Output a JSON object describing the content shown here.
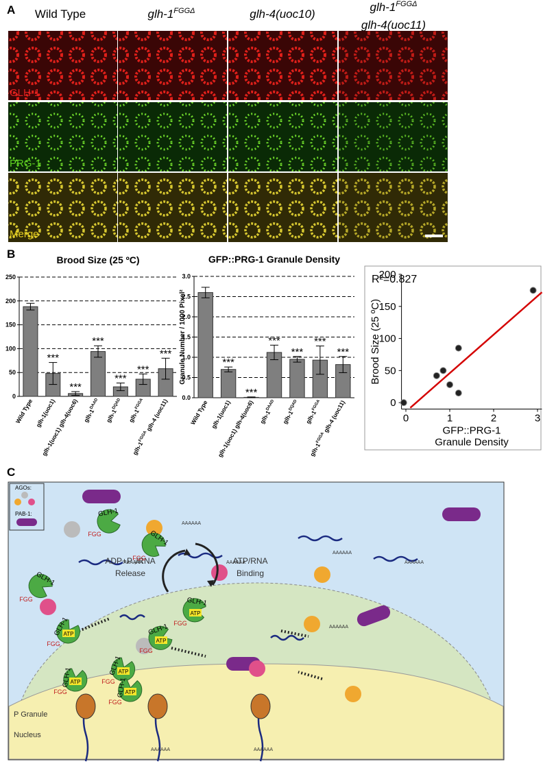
{
  "panel_labels": [
    "A",
    "B",
    "C"
  ],
  "panel_a": {
    "columns": [
      "Wild Type",
      {
        "text": "glh-1",
        "sup": "FGGΔ"
      },
      "glh-4(uoc10)",
      {
        "text": "glh-1",
        "sup": "FGGΔ",
        "line2": "glh-4(uoc11)"
      }
    ],
    "rows": [
      "GLH-1",
      "PRG-1",
      "Merge"
    ]
  },
  "chart_data": [
    {
      "type": "bar",
      "title": "Brood Size (25 ºC)",
      "categories": [
        "Wild Type",
        "glh-1(uoc1)",
        "glh-1(uoc1) glh-4(uoc6)",
        {
          "text": "glh-1",
          "sup": "DAAD"
        },
        {
          "text": "glh-1",
          "sup": "DQAD"
        },
        {
          "text": "glh-1",
          "sup": "FGGA"
        },
        {
          "text": "glh-1",
          "sup": "FGGA",
          "tail": " glh-4 (uoc11)"
        }
      ],
      "values": [
        188,
        48,
        6,
        94,
        20,
        36,
        58
      ],
      "errors": [
        7,
        23,
        4,
        12,
        8,
        11,
        22
      ],
      "significance": [
        null,
        "***",
        "***",
        "***",
        "***",
        "***",
        "***"
      ],
      "color": "#7f7f7f",
      "ylim": [
        0,
        250
      ],
      "yticks": [
        0,
        50,
        100,
        150,
        200,
        250
      ],
      "grid": "dashed"
    },
    {
      "type": "bar",
      "title": "GFP::PRG-1 Granule Density",
      "y_label": "Granule Number / 1000 Pixel²",
      "categories": [
        "Wild Type",
        "glh-1(uoc1)",
        "glh-1(uoc1) glh-4(uoc6)",
        {
          "text": "glh-1",
          "sup": "DAAD"
        },
        {
          "text": "glh-1",
          "sup": "DQAD"
        },
        {
          "text": "glh-1",
          "sup": "FGGA"
        },
        {
          "text": "glh-1",
          "sup": "FGGA",
          "tail": " glh-4 (uoc11)"
        }
      ],
      "values": [
        2.6,
        0.7,
        0.01,
        1.12,
        0.95,
        0.93,
        0.82
      ],
      "errors": [
        0.13,
        0.06,
        0.01,
        0.18,
        0.07,
        0.35,
        0.2
      ],
      "significance": [
        null,
        "***",
        "***",
        "***",
        "***",
        "***",
        "***"
      ],
      "color": "#7f7f7f",
      "ylim": [
        0,
        3
      ],
      "yticks": [
        {
          "value": 0,
          "label": "0.0"
        },
        0.5,
        {
          "value": 1,
          "label": "1.0"
        },
        1.5,
        {
          "value": 2,
          "label": "2.0"
        },
        2.5,
        {
          "value": 3,
          "label": "3.0"
        }
      ],
      "grid": "dashed"
    },
    {
      "type": "scatter",
      "y_label": "Brood Size (25 ºC)",
      "x_label": [
        "GFP::PRG-1",
        "Granule Density"
      ],
      "annotation": "R²=0.827",
      "x": [
        2.9,
        -0.05,
        0.7,
        0.85,
        1.0,
        1.2,
        1.2
      ],
      "y": [
        175,
        0,
        42,
        50,
        28,
        15,
        85
      ],
      "color": "#222222",
      "fit_line": {
        "x": [
          0.1,
          3.1
        ],
        "y": [
          -8,
          172
        ],
        "color": "#d40000"
      },
      "xlim": [
        -0.1,
        3.1
      ],
      "xticks": [
        0,
        1,
        2,
        3
      ],
      "ylim": [
        -10,
        200
      ],
      "yticks": [
        0,
        50,
        100,
        150,
        200
      ]
    }
  ],
  "panel_c": {
    "legend": [
      "AGOs:",
      "PAB-1:"
    ],
    "helicase": "GLH-1",
    "motif": "FGG",
    "atp": "ATP",
    "polya": "AAAAAA",
    "cycle_left": [
      "ADP+P ᵢ/RNA",
      "Release"
    ],
    "cycle_right": [
      "ATP/RNA",
      "Binding"
    ],
    "regions": [
      "P Granule",
      "Nucleus"
    ]
  }
}
